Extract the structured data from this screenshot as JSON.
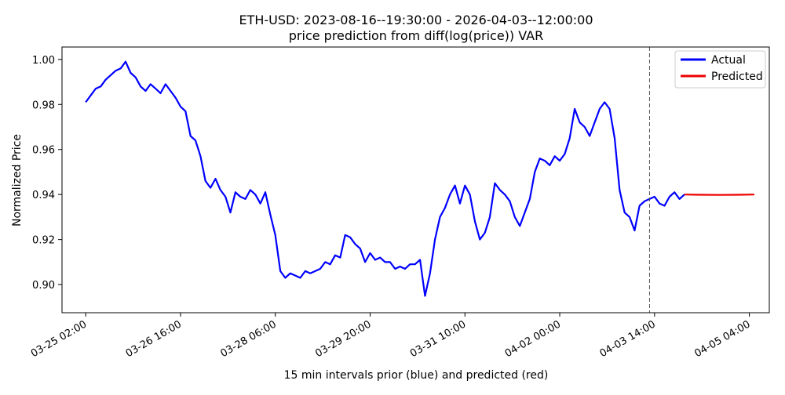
{
  "chart_data": {
    "type": "line",
    "title": "ETH-USD: 2023-08-16--19:30:00 - 2026-04-03--12:00:00",
    "subtitle": "price prediction from diff(log(price)) VAR",
    "xlabel": "15 min intervals prior (blue) and predicted (red)",
    "ylabel": "Normalized Price",
    "x_tick_labels": [
      "03-25 02:00",
      "03-26 16:00",
      "03-28 06:00",
      "03-29 20:00",
      "03-31 10:00",
      "04-02 00:00",
      "04-03 14:00",
      "04-05 04:00"
    ],
    "x_ticks": [
      "2026-03-25T02:00",
      "2026-03-26T16:00",
      "2026-03-28T06:00",
      "2026-03-29T20:00",
      "2026-03-31T10:00",
      "2026-04-02T00:00",
      "2026-04-03T14:00",
      "2026-04-05T04:00"
    ],
    "xlim": [
      "2026-03-24T16:30",
      "2026-04-05T12:00"
    ],
    "y_ticks": [
      0.9,
      0.92,
      0.94,
      0.96,
      0.98,
      1.0
    ],
    "y_tick_labels": [
      "0.90",
      "0.92",
      "0.94",
      "0.96",
      "0.98",
      "1.00"
    ],
    "ylim": [
      0.8875,
      1.0055
    ],
    "grid": false,
    "legend_position": "top-right",
    "forecast_start": "2026-04-03T12:00",
    "series": [
      {
        "name": "Actual",
        "color": "#0000ff",
        "points": [
          [
            "2026-03-25T02:00",
            0.981
          ],
          [
            "2026-03-25T04:00",
            0.984
          ],
          [
            "2026-03-25T06:00",
            0.987
          ],
          [
            "2026-03-25T08:00",
            0.988
          ],
          [
            "2026-03-25T10:00",
            0.991
          ],
          [
            "2026-03-25T12:00",
            0.993
          ],
          [
            "2026-03-25T14:00",
            0.995
          ],
          [
            "2026-03-25T16:00",
            0.996
          ],
          [
            "2026-03-25T18:00",
            0.999
          ],
          [
            "2026-03-25T20:00",
            0.994
          ],
          [
            "2026-03-25T22:00",
            0.992
          ],
          [
            "2026-03-26T00:00",
            0.988
          ],
          [
            "2026-03-26T02:00",
            0.986
          ],
          [
            "2026-03-26T04:00",
            0.989
          ],
          [
            "2026-03-26T06:00",
            0.987
          ],
          [
            "2026-03-26T08:00",
            0.985
          ],
          [
            "2026-03-26T10:00",
            0.989
          ],
          [
            "2026-03-26T12:00",
            0.986
          ],
          [
            "2026-03-26T14:00",
            0.983
          ],
          [
            "2026-03-26T16:00",
            0.979
          ],
          [
            "2026-03-26T18:00",
            0.977
          ],
          [
            "2026-03-26T20:00",
            0.966
          ],
          [
            "2026-03-26T22:00",
            0.964
          ],
          [
            "2026-03-27T00:00",
            0.957
          ],
          [
            "2026-03-27T02:00",
            0.946
          ],
          [
            "2026-03-27T04:00",
            0.943
          ],
          [
            "2026-03-27T06:00",
            0.947
          ],
          [
            "2026-03-27T08:00",
            0.942
          ],
          [
            "2026-03-27T10:00",
            0.939
          ],
          [
            "2026-03-27T12:00",
            0.932
          ],
          [
            "2026-03-27T14:00",
            0.941
          ],
          [
            "2026-03-27T16:00",
            0.939
          ],
          [
            "2026-03-27T18:00",
            0.938
          ],
          [
            "2026-03-27T20:00",
            0.942
          ],
          [
            "2026-03-27T22:00",
            0.94
          ],
          [
            "2026-03-28T00:00",
            0.936
          ],
          [
            "2026-03-28T02:00",
            0.941
          ],
          [
            "2026-03-28T04:00",
            0.931
          ],
          [
            "2026-03-28T06:00",
            0.922
          ],
          [
            "2026-03-28T08:00",
            0.906
          ],
          [
            "2026-03-28T10:00",
            0.903
          ],
          [
            "2026-03-28T12:00",
            0.905
          ],
          [
            "2026-03-28T14:00",
            0.904
          ],
          [
            "2026-03-28T16:00",
            0.903
          ],
          [
            "2026-03-28T18:00",
            0.906
          ],
          [
            "2026-03-28T20:00",
            0.905
          ],
          [
            "2026-03-28T22:00",
            0.906
          ],
          [
            "2026-03-29T00:00",
            0.907
          ],
          [
            "2026-03-29T02:00",
            0.91
          ],
          [
            "2026-03-29T04:00",
            0.909
          ],
          [
            "2026-03-29T06:00",
            0.913
          ],
          [
            "2026-03-29T08:00",
            0.912
          ],
          [
            "2026-03-29T10:00",
            0.922
          ],
          [
            "2026-03-29T12:00",
            0.921
          ],
          [
            "2026-03-29T14:00",
            0.918
          ],
          [
            "2026-03-29T16:00",
            0.916
          ],
          [
            "2026-03-29T18:00",
            0.91
          ],
          [
            "2026-03-29T20:00",
            0.914
          ],
          [
            "2026-03-29T22:00",
            0.911
          ],
          [
            "2026-03-30T00:00",
            0.912
          ],
          [
            "2026-03-30T02:00",
            0.91
          ],
          [
            "2026-03-30T04:00",
            0.91
          ],
          [
            "2026-03-30T06:00",
            0.907
          ],
          [
            "2026-03-30T08:00",
            0.908
          ],
          [
            "2026-03-30T10:00",
            0.907
          ],
          [
            "2026-03-30T12:00",
            0.909
          ],
          [
            "2026-03-30T14:00",
            0.909
          ],
          [
            "2026-03-30T16:00",
            0.911
          ],
          [
            "2026-03-30T18:00",
            0.895
          ],
          [
            "2026-03-30T20:00",
            0.905
          ],
          [
            "2026-03-30T22:00",
            0.92
          ],
          [
            "2026-03-31T00:00",
            0.93
          ],
          [
            "2026-03-31T02:00",
            0.934
          ],
          [
            "2026-03-31T04:00",
            0.94
          ],
          [
            "2026-03-31T06:00",
            0.944
          ],
          [
            "2026-03-31T08:00",
            0.936
          ],
          [
            "2026-03-31T10:00",
            0.944
          ],
          [
            "2026-03-31T12:00",
            0.94
          ],
          [
            "2026-03-31T14:00",
            0.928
          ],
          [
            "2026-03-31T16:00",
            0.92
          ],
          [
            "2026-03-31T18:00",
            0.923
          ],
          [
            "2026-03-31T20:00",
            0.93
          ],
          [
            "2026-03-31T22:00",
            0.945
          ],
          [
            "2026-04-01T00:00",
            0.942
          ],
          [
            "2026-04-01T02:00",
            0.94
          ],
          [
            "2026-04-01T04:00",
            0.937
          ],
          [
            "2026-04-01T06:00",
            0.93
          ],
          [
            "2026-04-01T08:00",
            0.926
          ],
          [
            "2026-04-01T10:00",
            0.932
          ],
          [
            "2026-04-01T12:00",
            0.938
          ],
          [
            "2026-04-01T14:00",
            0.95
          ],
          [
            "2026-04-01T16:00",
            0.956
          ],
          [
            "2026-04-01T18:00",
            0.955
          ],
          [
            "2026-04-01T20:00",
            0.953
          ],
          [
            "2026-04-01T22:00",
            0.957
          ],
          [
            "2026-04-02T00:00",
            0.955
          ],
          [
            "2026-04-02T02:00",
            0.958
          ],
          [
            "2026-04-02T04:00",
            0.965
          ],
          [
            "2026-04-02T06:00",
            0.978
          ],
          [
            "2026-04-02T08:00",
            0.972
          ],
          [
            "2026-04-02T10:00",
            0.97
          ],
          [
            "2026-04-02T12:00",
            0.966
          ],
          [
            "2026-04-02T14:00",
            0.972
          ],
          [
            "2026-04-02T16:00",
            0.978
          ],
          [
            "2026-04-02T18:00",
            0.981
          ],
          [
            "2026-04-02T20:00",
            0.978
          ],
          [
            "2026-04-02T22:00",
            0.965
          ],
          [
            "2026-04-03T00:00",
            0.942
          ],
          [
            "2026-04-03T02:00",
            0.932
          ],
          [
            "2026-04-03T04:00",
            0.93
          ],
          [
            "2026-04-03T06:00",
            0.924
          ],
          [
            "2026-04-03T08:00",
            0.935
          ],
          [
            "2026-04-03T10:00",
            0.937
          ],
          [
            "2026-04-03T12:00",
            0.938
          ],
          [
            "2026-04-03T14:00",
            0.939
          ],
          [
            "2026-04-03T16:00",
            0.936
          ],
          [
            "2026-04-03T18:00",
            0.935
          ],
          [
            "2026-04-03T20:00",
            0.939
          ],
          [
            "2026-04-03T22:00",
            0.941
          ],
          [
            "2026-04-04T00:00",
            0.938
          ],
          [
            "2026-04-04T02:00",
            0.94
          ]
        ]
      },
      {
        "name": "Predicted",
        "color": "#ee0000",
        "points": [
          [
            "2026-04-04T02:00",
            0.94
          ],
          [
            "2026-04-04T08:00",
            0.9399
          ],
          [
            "2026-04-04T16:00",
            0.9398
          ],
          [
            "2026-04-05T00:00",
            0.9399
          ],
          [
            "2026-04-05T06:00",
            0.94
          ]
        ]
      }
    ]
  }
}
